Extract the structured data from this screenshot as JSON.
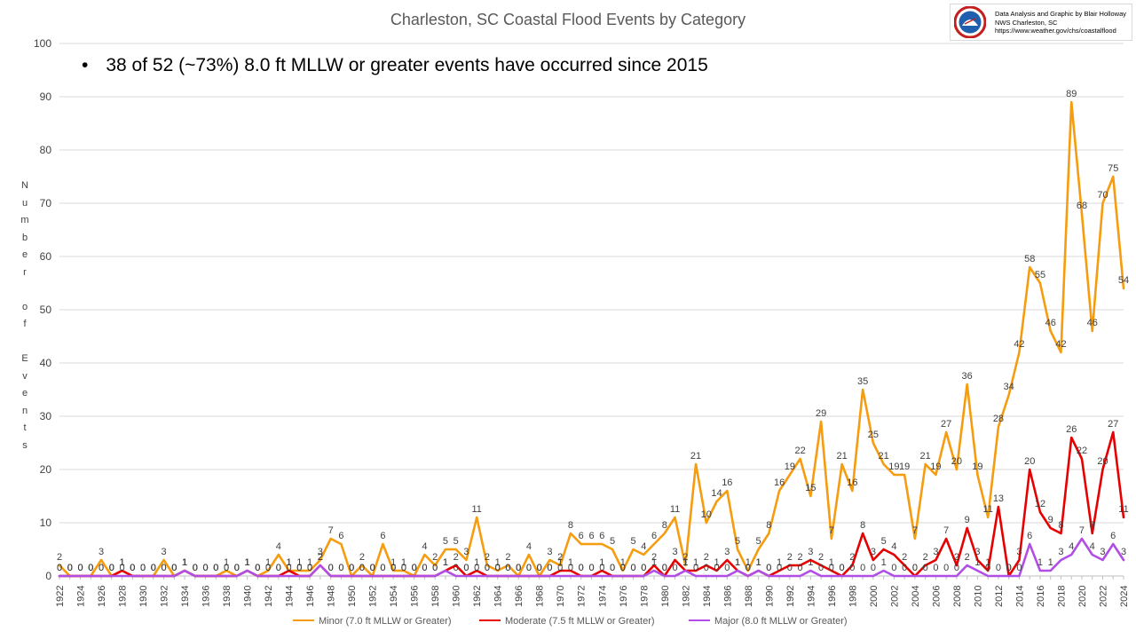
{
  "title": "Charleston, SC Coastal Flood Events by Category",
  "note": "38 of 52 (~73%) 8.0 ft MLLW or greater events have occurred since 2015",
  "credit": {
    "line1": "Data Analysis and Graphic by Blair Holloway",
    "line2": "NWS Charleston, SC",
    "line3": "https://www.weather.gov/chs/coastalflood",
    "logo": "noaa-nws-logo"
  },
  "ylabel": "Number of Events",
  "ylabel_letters": [
    "N",
    "u",
    "m",
    "b",
    "e",
    "r",
    "",
    "o",
    "f",
    "",
    "E",
    "v",
    "e",
    "n",
    "t",
    "s"
  ],
  "colors": {
    "minor": "#f59c0f",
    "moderate": "#e60000",
    "major": "#b04ee6",
    "grid": "#d9d9d9",
    "text": "#404040"
  },
  "chart_data": {
    "type": "line",
    "title": "Charleston, SC Coastal Flood Events by Category",
    "xlabel": "",
    "ylabel": "Number of Events",
    "ylim": [
      0,
      100
    ],
    "yticks": [
      0,
      10,
      20,
      30,
      40,
      50,
      60,
      70,
      80,
      90,
      100
    ],
    "grid": "horizontal",
    "legend": "bottom",
    "x": [
      1922,
      1923,
      1924,
      1925,
      1926,
      1927,
      1928,
      1929,
      1930,
      1931,
      1932,
      1933,
      1934,
      1935,
      1936,
      1937,
      1938,
      1939,
      1940,
      1941,
      1942,
      1943,
      1944,
      1945,
      1946,
      1947,
      1948,
      1949,
      1950,
      1951,
      1952,
      1953,
      1954,
      1955,
      1956,
      1957,
      1958,
      1959,
      1960,
      1961,
      1962,
      1963,
      1964,
      1965,
      1966,
      1967,
      1968,
      1969,
      1970,
      1971,
      1972,
      1973,
      1974,
      1975,
      1976,
      1977,
      1978,
      1979,
      1980,
      1981,
      1982,
      1983,
      1984,
      1985,
      1986,
      1987,
      1988,
      1989,
      1990,
      1991,
      1992,
      1993,
      1994,
      1995,
      1996,
      1997,
      1998,
      1999,
      2000,
      2001,
      2002,
      2003,
      2004,
      2005,
      2006,
      2007,
      2008,
      2009,
      2010,
      2011,
      2012,
      2013,
      2014,
      2015,
      2016,
      2017,
      2018,
      2019,
      2020,
      2021,
      2022,
      2023,
      2024
    ],
    "series": [
      {
        "name": "Minor (7.0 ft MLLW or Greater)",
        "color": "#f59c0f",
        "values": [
          2,
          0,
          0,
          0,
          3,
          0,
          1,
          0,
          0,
          0,
          3,
          0,
          1,
          0,
          0,
          0,
          1,
          0,
          1,
          0,
          1,
          4,
          1,
          1,
          1,
          3,
          7,
          6,
          0,
          2,
          0,
          6,
          1,
          1,
          0,
          4,
          2,
          5,
          5,
          3,
          11,
          2,
          1,
          2,
          0,
          4,
          0,
          3,
          2,
          8,
          6,
          6,
          6,
          5,
          1,
          5,
          4,
          6,
          8,
          11,
          2,
          21,
          10,
          14,
          16,
          5,
          1,
          5,
          8,
          16,
          19,
          22,
          15,
          29,
          7,
          21,
          16,
          35,
          25,
          21,
          19,
          19,
          7,
          21,
          19,
          27,
          20,
          36,
          19,
          11,
          28,
          34,
          42,
          58,
          55,
          46,
          42,
          89,
          68,
          46,
          70,
          75,
          54
        ]
      },
      {
        "name": "Moderate (7.5 ft MLLW or Greater)",
        "color": "#e60000",
        "values": [
          0,
          0,
          0,
          0,
          0,
          0,
          1,
          0,
          0,
          0,
          0,
          0,
          1,
          0,
          0,
          0,
          0,
          0,
          1,
          0,
          0,
          0,
          1,
          0,
          0,
          2,
          0,
          0,
          0,
          0,
          0,
          0,
          0,
          0,
          0,
          0,
          0,
          1,
          2,
          0,
          1,
          0,
          0,
          0,
          0,
          0,
          0,
          0,
          1,
          1,
          0,
          0,
          1,
          0,
          0,
          0,
          0,
          2,
          0,
          3,
          1,
          1,
          2,
          1,
          3,
          1,
          0,
          1,
          0,
          1,
          2,
          2,
          3,
          2,
          1,
          0,
          2,
          8,
          3,
          5,
          4,
          2,
          0,
          2,
          3,
          7,
          2,
          9,
          3,
          1,
          13,
          0,
          3,
          20,
          12,
          9,
          8,
          26,
          22,
          8,
          20,
          27,
          11
        ]
      },
      {
        "name": "Major (8.0 ft MLLW or Greater)",
        "color": "#b04ee6",
        "values": [
          0,
          0,
          0,
          0,
          0,
          0,
          0,
          0,
          0,
          0,
          0,
          0,
          1,
          0,
          0,
          0,
          0,
          0,
          1,
          0,
          0,
          0,
          0,
          0,
          0,
          2,
          0,
          0,
          0,
          0,
          0,
          0,
          0,
          0,
          0,
          0,
          0,
          1,
          0,
          0,
          0,
          0,
          0,
          0,
          0,
          0,
          0,
          0,
          0,
          0,
          0,
          0,
          0,
          0,
          0,
          0,
          0,
          1,
          0,
          0,
          1,
          0,
          0,
          0,
          0,
          1,
          0,
          1,
          0,
          0,
          0,
          0,
          1,
          0,
          0,
          0,
          0,
          0,
          0,
          1,
          0,
          0,
          0,
          0,
          0,
          0,
          0,
          2,
          1,
          0,
          0,
          0,
          0,
          6,
          1,
          1,
          3,
          4,
          7,
          4,
          3,
          6,
          3
        ]
      }
    ]
  }
}
